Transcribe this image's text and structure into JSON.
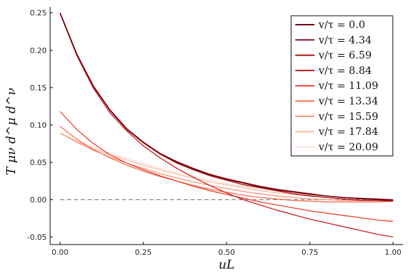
{
  "chart_data": {
    "type": "line",
    "title": "",
    "xlabel": "uL",
    "ylabel": "T μν d^μ d^ν",
    "xlim": [
      -0.03,
      1.03
    ],
    "ylim": [
      -0.06,
      0.258
    ],
    "xticks": [
      0.0,
      0.25,
      0.5,
      0.75,
      1.0
    ],
    "xtick_labels": [
      "0.00",
      "0.25",
      "0.50",
      "0.75",
      "1.00"
    ],
    "yticks": [
      -0.05,
      0.0,
      0.05,
      0.1,
      0.15,
      0.2,
      0.25
    ],
    "ytick_labels": [
      "-0.05",
      "0.00",
      "0.05",
      "0.10",
      "0.15",
      "0.20",
      "0.25"
    ],
    "grid": false,
    "legend_position": "top-right",
    "x": [
      0.0,
      0.05,
      0.1,
      0.15,
      0.2,
      0.25,
      0.3,
      0.35,
      0.4,
      0.45,
      0.5,
      0.55,
      0.6,
      0.65,
      0.7,
      0.75,
      0.8,
      0.85,
      0.9,
      0.95,
      1.0
    ],
    "reference_line": {
      "y": 0.0,
      "style": "dashed",
      "color": "#808080"
    },
    "series": [
      {
        "name": "v/τ = 0.0",
        "color": "#67000d",
        "values": [
          0.25,
          0.195,
          0.152,
          0.12,
          0.095,
          0.077,
          0.062,
          0.051,
          0.042,
          0.034,
          0.028,
          0.023,
          0.018,
          0.014,
          0.011,
          0.008,
          0.005,
          0.003,
          0.002,
          0.001,
          0.0
        ]
      },
      {
        "name": "v/τ = 4.34",
        "color": "#8b0f14",
        "values": [
          0.25,
          0.195,
          0.152,
          0.12,
          0.095,
          0.077,
          0.062,
          0.05,
          0.041,
          0.033,
          0.027,
          0.022,
          0.017,
          0.013,
          0.01,
          0.007,
          0.005,
          0.003,
          0.001,
          0.0,
          -0.001
        ]
      },
      {
        "name": "v/τ = 6.59",
        "color": "#a50f15",
        "values": [
          0.249,
          0.194,
          0.151,
          0.119,
          0.094,
          0.076,
          0.061,
          0.049,
          0.04,
          0.032,
          0.026,
          0.02,
          0.016,
          0.012,
          0.008,
          0.005,
          0.003,
          0.001,
          -0.001,
          -0.001,
          -0.002
        ]
      },
      {
        "name": "v/τ = 8.84",
        "color": "#cb181d",
        "values": [
          0.249,
          0.193,
          0.149,
          0.116,
          0.092,
          0.072,
          0.056,
          0.042,
          0.03,
          0.019,
          0.009,
          0.0,
          -0.007,
          -0.014,
          -0.02,
          -0.026,
          -0.031,
          -0.036,
          -0.041,
          -0.046,
          -0.05
        ]
      },
      {
        "name": "v/τ = 11.09",
        "color": "#ef3b2c",
        "values": [
          0.118,
          0.094,
          0.075,
          0.06,
          0.049,
          0.04,
          0.032,
          0.025,
          0.018,
          0.012,
          0.007,
          0.002,
          -0.003,
          -0.007,
          -0.011,
          -0.015,
          -0.018,
          -0.021,
          -0.024,
          -0.027,
          -0.029
        ]
      },
      {
        "name": "v/τ = 13.34",
        "color": "#fb6a4a",
        "values": [
          0.098,
          0.081,
          0.067,
          0.056,
          0.046,
          0.038,
          0.031,
          0.025,
          0.019,
          0.014,
          0.01,
          0.006,
          0.003,
          0.001,
          -0.001,
          -0.002,
          -0.003,
          -0.003,
          -0.003,
          -0.003,
          -0.002
        ]
      },
      {
        "name": "v/τ = 15.59",
        "color": "#fc9272",
        "values": [
          0.089,
          0.077,
          0.066,
          0.057,
          0.049,
          0.042,
          0.035,
          0.029,
          0.024,
          0.019,
          0.015,
          0.011,
          0.008,
          0.005,
          0.003,
          0.001,
          0.0,
          -0.001,
          -0.001,
          -0.001,
          -0.001
        ]
      },
      {
        "name": "v/τ = 17.84",
        "color": "#fcbba1",
        "values": [
          0.089,
          0.078,
          0.068,
          0.06,
          0.053,
          0.046,
          0.04,
          0.034,
          0.029,
          0.024,
          0.02,
          0.016,
          0.012,
          0.009,
          0.007,
          0.005,
          0.003,
          0.002,
          0.001,
          0.0,
          0.0
        ]
      },
      {
        "name": "v/τ = 20.09",
        "color": "#fee0d2",
        "values": [
          0.089,
          0.079,
          0.07,
          0.062,
          0.055,
          0.048,
          0.042,
          0.036,
          0.031,
          0.026,
          0.022,
          0.018,
          0.014,
          0.011,
          0.008,
          0.006,
          0.004,
          0.002,
          0.001,
          0.0,
          0.0
        ]
      }
    ]
  }
}
